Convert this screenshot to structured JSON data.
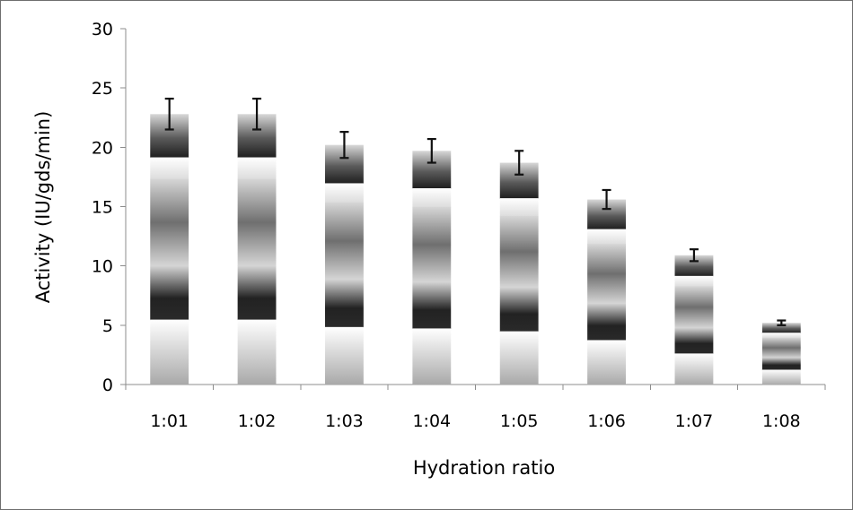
{
  "chart_data": {
    "type": "bar",
    "title": "",
    "xlabel": "Hydration ratio",
    "ylabel": "Activity (IU/gds/min)",
    "ylim": [
      0,
      30
    ],
    "yticks": [
      0,
      5,
      10,
      15,
      20,
      25,
      30
    ],
    "categories": [
      "1:01",
      "1:02",
      "1:03",
      "1:04",
      "1:05",
      "1:06",
      "1:07",
      "1:08"
    ],
    "series": [
      {
        "values": [
          22.8,
          22.8,
          20.2,
          19.7,
          18.7,
          15.6,
          10.9,
          5.2
        ],
        "error": [
          1.3,
          1.3,
          1.1,
          1.0,
          1.0,
          0.8,
          0.5,
          0.2
        ]
      }
    ],
    "grid": false,
    "legend": "none",
    "colors": {
      "bar_light": "#d8d8d8",
      "bar_mid": "#7a7a7a",
      "bar_dark": "#1e1e1e",
      "error_bar": "#111111",
      "axis": "#8c8c8c"
    }
  }
}
